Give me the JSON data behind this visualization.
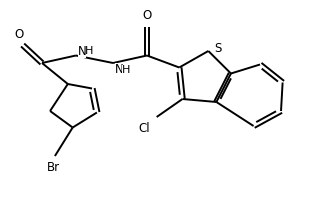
{
  "bg_color": "#ffffff",
  "line_color": "#000000",
  "line_width": 1.4,
  "font_size": 8.5,
  "xlim": [
    0,
    10
  ],
  "ylim": [
    0,
    7
  ]
}
